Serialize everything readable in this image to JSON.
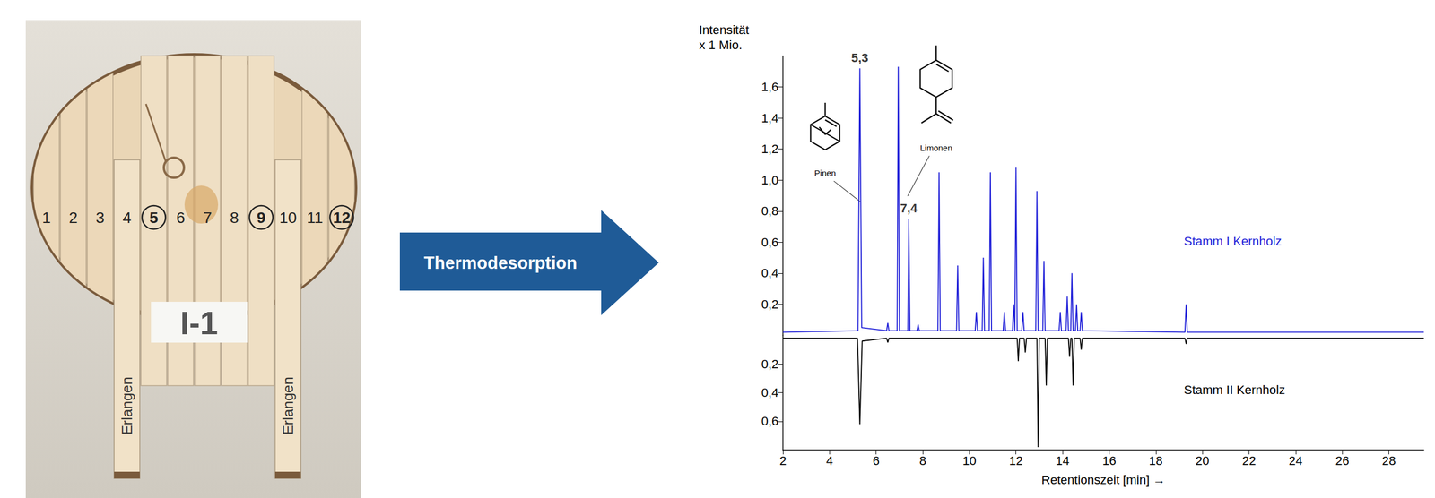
{
  "photo": {
    "strips": [
      "1",
      "2",
      "3",
      "4",
      "5",
      "6",
      "7",
      "8",
      "9",
      "10",
      "11",
      "12"
    ],
    "circled": [
      "5",
      "9",
      "12"
    ],
    "sign": "I-1",
    "tags": [
      {
        "strip": "4",
        "text": "Erlangen"
      },
      {
        "strip": "10",
        "text": "Erlangen"
      }
    ]
  },
  "arrow": {
    "text": "Thermodesorption"
  },
  "chart_data": {
    "type": "line",
    "xlabel": "Retentionszeit [min] →",
    "ylabel": [
      "Intensität",
      "x 1 Mio."
    ],
    "xlim": [
      2,
      29.5
    ],
    "xticks": [
      2,
      4,
      6,
      8,
      10,
      12,
      14,
      16,
      18,
      20,
      22,
      24,
      26,
      28
    ],
    "ylim": [
      0,
      1.8
    ],
    "yticks": [
      {
        "value": 0.2,
        "label": "0,2"
      },
      {
        "value": 0.4,
        "label": "0,4"
      },
      {
        "value": 0.6,
        "label": "0,6"
      },
      {
        "value": 0.8,
        "label": "0,8"
      },
      {
        "value": 1.0,
        "label": "1,0"
      },
      {
        "value": 1.2,
        "label": "1,2"
      },
      {
        "value": 1.4,
        "label": "1,4"
      },
      {
        "value": 1.6,
        "label": "1,6"
      }
    ],
    "y2lim": [
      0,
      0.8
    ],
    "y2ticks": [
      {
        "value": 0.2,
        "label": "0,2"
      },
      {
        "value": 0.4,
        "label": "0,4"
      },
      {
        "value": 0.6,
        "label": "0,6"
      }
    ],
    "grid": false,
    "series": [
      {
        "name": "Stamm I Kernholz",
        "color": "#1f1fd8",
        "x": [
          2,
          5.22,
          5.3,
          5.38,
          6.45,
          6.5,
          6.55,
          6.9,
          6.95,
          7.0,
          7.36,
          7.4,
          7.45,
          7.75,
          7.8,
          7.85,
          8.65,
          8.7,
          8.75,
          9.45,
          9.5,
          9.55,
          10.25,
          10.3,
          10.35,
          10.55,
          10.6,
          10.65,
          10.85,
          10.9,
          10.95,
          11.45,
          11.5,
          11.55,
          11.85,
          11.9,
          11.95,
          12.0,
          12.05,
          12.25,
          12.3,
          12.35,
          12.85,
          12.9,
          12.95,
          13.15,
          13.2,
          13.25,
          13.85,
          13.9,
          13.95,
          14.15,
          14.2,
          14.25,
          14.35,
          14.4,
          14.45,
          14.55,
          14.6,
          14.65,
          14.75,
          14.8,
          14.85,
          19.25,
          19.3,
          19.35,
          29.5
        ],
        "values": [
          0.02,
          0.03,
          1.72,
          0.05,
          0.03,
          0.08,
          0.03,
          0.03,
          1.73,
          0.03,
          0.03,
          0.75,
          0.03,
          0.03,
          0.07,
          0.03,
          0.03,
          1.05,
          0.03,
          0.03,
          0.45,
          0.03,
          0.03,
          0.15,
          0.03,
          0.03,
          0.5,
          0.03,
          0.03,
          1.05,
          0.03,
          0.03,
          0.15,
          0.03,
          0.03,
          0.2,
          0.03,
          1.08,
          0.03,
          0.03,
          0.15,
          0.03,
          0.03,
          0.93,
          0.03,
          0.03,
          0.48,
          0.03,
          0.03,
          0.15,
          0.03,
          0.03,
          0.25,
          0.03,
          0.03,
          0.4,
          0.03,
          0.03,
          0.2,
          0.03,
          0.03,
          0.15,
          0.03,
          0.02,
          0.2,
          0.02,
          0.02
        ]
      },
      {
        "name": "Stamm II Kernholz",
        "color": "#000000",
        "axis": "y2",
        "x": [
          2,
          5.2,
          5.3,
          5.4,
          6.45,
          6.5,
          6.55,
          12.05,
          12.1,
          12.15,
          12.35,
          12.4,
          12.45,
          12.9,
          12.95,
          13.0,
          13.25,
          13.3,
          13.35,
          14.25,
          14.3,
          14.35,
          14.4,
          14.45,
          14.5,
          14.75,
          14.8,
          14.85,
          19.25,
          19.3,
          19.35,
          29.5
        ],
        "values": [
          0.02,
          0.02,
          0.62,
          0.04,
          0.02,
          0.05,
          0.02,
          0.02,
          0.18,
          0.02,
          0.02,
          0.12,
          0.02,
          0.02,
          0.78,
          0.02,
          0.02,
          0.35,
          0.02,
          0.02,
          0.15,
          0.02,
          0.02,
          0.35,
          0.02,
          0.02,
          0.1,
          0.02,
          0.02,
          0.06,
          0.02,
          0.02
        ]
      }
    ],
    "peak_labels": [
      {
        "text": "5,3",
        "x": 5.3,
        "y": 1.72
      },
      {
        "text": "7,4",
        "x": 7.4,
        "y": 0.75
      }
    ],
    "compounds": [
      {
        "name": "Pinen",
        "x": 5.3,
        "y": 0.85
      },
      {
        "name": "Limonen",
        "x": 7.4,
        "y": 0.89
      }
    ]
  }
}
